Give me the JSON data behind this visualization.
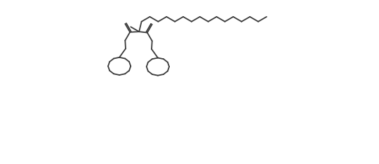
{
  "bg_color": "#ffffff",
  "line_color": "#3a3a3a",
  "line_width": 1.3,
  "figsize": [
    5.4,
    2.34
  ],
  "dpi": 100,
  "xlim": [
    0.0,
    16.5
  ],
  "ylim": [
    -5.5,
    9.0
  ]
}
